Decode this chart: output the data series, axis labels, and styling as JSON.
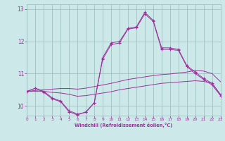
{
  "x": [
    0,
    1,
    2,
    3,
    4,
    5,
    6,
    7,
    8,
    9,
    10,
    11,
    12,
    13,
    14,
    15,
    16,
    17,
    18,
    19,
    20,
    21,
    22,
    23
  ],
  "line1": [
    10.45,
    10.55,
    10.45,
    10.25,
    10.15,
    9.85,
    9.75,
    9.8,
    10.1,
    11.5,
    11.95,
    12.0,
    12.4,
    12.45,
    12.9,
    12.65,
    11.8,
    11.8,
    11.75,
    11.25,
    11.05,
    10.85,
    10.7,
    10.35
  ],
  "line2": [
    10.45,
    10.55,
    10.42,
    10.22,
    10.13,
    9.82,
    9.72,
    9.82,
    10.1,
    11.45,
    11.9,
    11.95,
    12.38,
    12.42,
    12.85,
    12.62,
    11.75,
    11.75,
    11.72,
    11.22,
    11.0,
    10.82,
    10.65,
    10.32
  ],
  "line3": [
    10.45,
    10.48,
    10.5,
    10.52,
    10.54,
    10.54,
    10.52,
    10.55,
    10.6,
    10.65,
    10.7,
    10.76,
    10.82,
    10.86,
    10.9,
    10.94,
    10.97,
    10.99,
    11.02,
    11.05,
    11.1,
    11.08,
    11.0,
    10.75
  ],
  "line4": [
    10.45,
    10.45,
    10.45,
    10.42,
    10.4,
    10.36,
    10.3,
    10.32,
    10.36,
    10.4,
    10.44,
    10.5,
    10.54,
    10.58,
    10.62,
    10.66,
    10.7,
    10.72,
    10.74,
    10.76,
    10.78,
    10.76,
    10.7,
    10.35
  ],
  "line_color": "#993399",
  "bg_color": "#cce8e8",
  "grid_color": "#99bbbb",
  "xlabel": "Windchill (Refroidissement éolien,°C)",
  "ylim": [
    9.7,
    13.15
  ],
  "xlim": [
    0,
    23
  ],
  "yticks": [
    10,
    11,
    12,
    13
  ],
  "xticks": [
    0,
    1,
    2,
    3,
    4,
    5,
    6,
    7,
    8,
    9,
    10,
    11,
    12,
    13,
    14,
    15,
    16,
    17,
    18,
    19,
    20,
    21,
    22,
    23
  ]
}
